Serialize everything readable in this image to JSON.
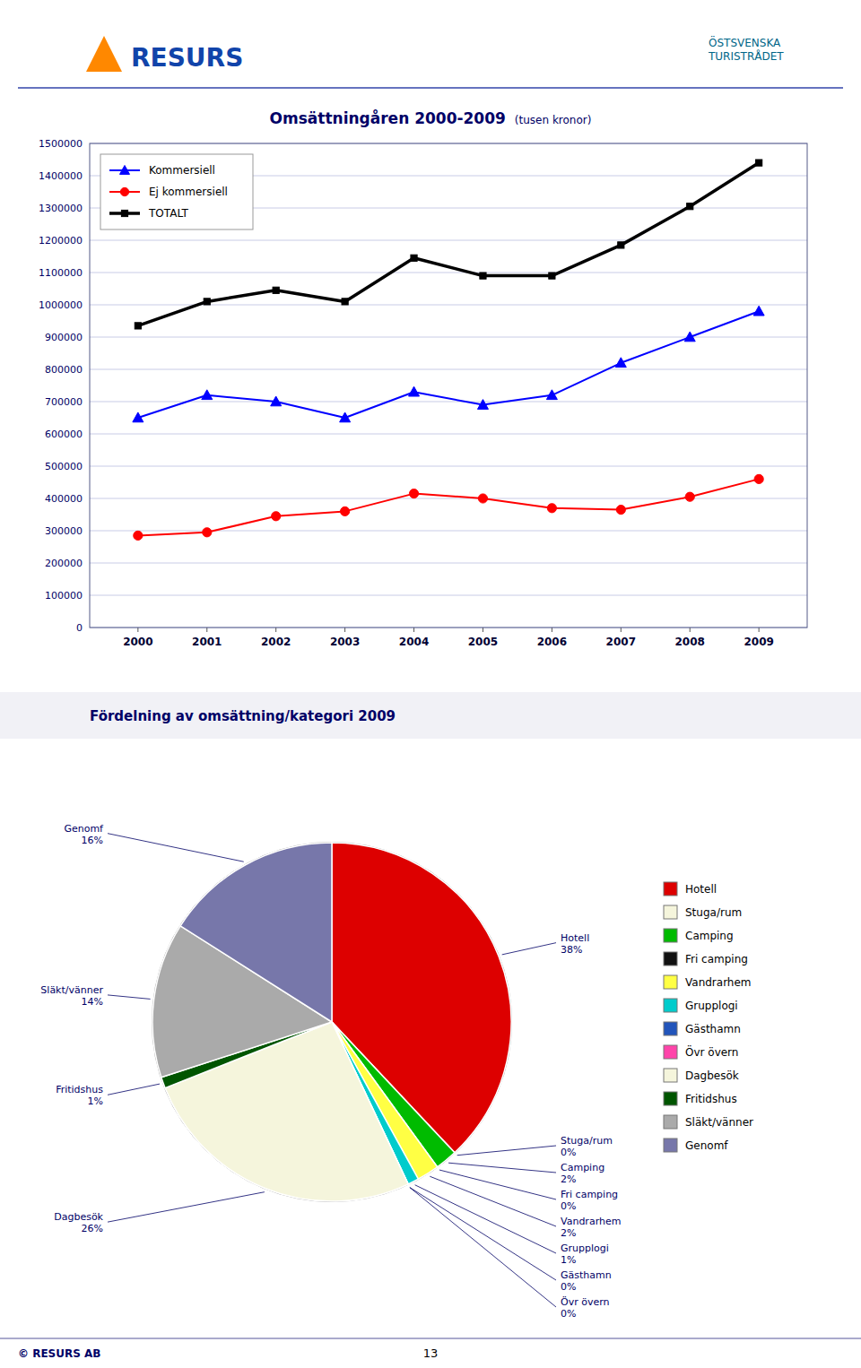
{
  "chart_data": [
    {
      "type": "line",
      "title": "Omsättningåren 2000-2009",
      "subtitle": "(tusen kronor)",
      "annotations": [
        "RESURS",
        "ÖSTSVENSKA\nTURISTRÅDET"
      ],
      "x": [
        2000,
        2001,
        2002,
        2003,
        2004,
        2005,
        2006,
        2007,
        2008,
        2009
      ],
      "xlim": [
        1999.3,
        2009.7
      ],
      "xticks": [
        2000,
        2001,
        2002,
        2003,
        2004,
        2005,
        2006,
        2007,
        2008,
        2009
      ],
      "ylim": [
        0,
        1500000
      ],
      "yticks": [
        0,
        100000,
        200000,
        300000,
        400000,
        500000,
        600000,
        700000,
        800000,
        900000,
        1000000,
        1100000,
        1200000,
        1300000,
        1400000,
        1500000
      ],
      "grid": true,
      "legend": "upper left",
      "series": [
        {
          "name": "Kommersiell",
          "color": "#0000FF",
          "marker": "triangle",
          "values": [
            650000,
            720000,
            700000,
            650000,
            730000,
            690000,
            720000,
            820000,
            900000,
            980000
          ]
        },
        {
          "name": "Ej kommersiell",
          "color": "#FF0000",
          "marker": "circle",
          "values": [
            285000,
            295000,
            345000,
            360000,
            415000,
            400000,
            370000,
            365000,
            405000,
            460000
          ]
        },
        {
          "name": "TOTALT",
          "color": "#000000",
          "marker": "square",
          "values": [
            935000,
            1010000,
            1045000,
            1010000,
            1145000,
            1090000,
            1090000,
            1185000,
            1305000,
            1440000
          ]
        }
      ]
    },
    {
      "type": "pie",
      "title": "Fördelning av omsättning/kategori 2009",
      "categories": [
        "Hotell",
        "Stuga/rum",
        "Camping",
        "Fri camping",
        "Vandrarhem",
        "Grupplogi",
        "Gästhamn",
        "Övr övern",
        "Dagbesök",
        "Fritidshus",
        "Släkt/vänner",
        "Genomf"
      ],
      "values": [
        38,
        0,
        2,
        0,
        2,
        1,
        0,
        0,
        26,
        1,
        14,
        16
      ],
      "value_labels": [
        "38%",
        "0%",
        "2%",
        "0%",
        "2%",
        "1%",
        "0%",
        "0%",
        "26%",
        "1%",
        "14%",
        "16%"
      ],
      "colors": [
        "#DD0000",
        "#F5F5DC",
        "#00BB00",
        "#111111",
        "#FFFF44",
        "#00CCCC",
        "#2255BB",
        "#FF44AA",
        "#F5F5DC",
        "#005500",
        "#AAAAAA",
        "#7777AA"
      ],
      "data_labels": true,
      "legend": "right",
      "annotations": [
        "© RESURS AB",
        "13"
      ]
    }
  ]
}
